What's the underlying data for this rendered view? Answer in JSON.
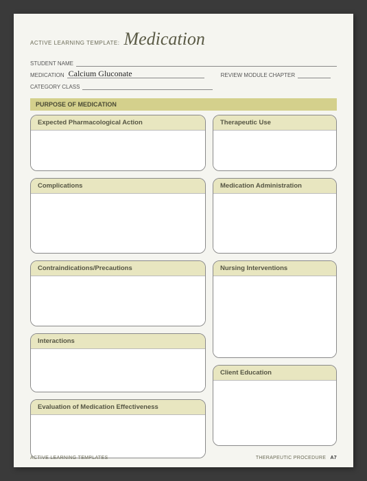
{
  "header": {
    "prefix": "ACTIVE LEARNING TEMPLATE:",
    "title": "Medication"
  },
  "meta": {
    "student_label": "STUDENT NAME",
    "student_value": "",
    "medication_label": "MEDICATION",
    "medication_value": "Calcium Gluconate",
    "review_label": "REVIEW MODULE CHAPTER",
    "review_value": "",
    "category_label": "CATEGORY CLASS",
    "category_value": ""
  },
  "section_band": "PURPOSE OF MEDICATION",
  "boxes": {
    "expected": "Expected Pharmacological Action",
    "therapeutic": "Therapeutic Use",
    "complications": "Complications",
    "med_admin": "Medication Administration",
    "contra": "Contraindications/Precautions",
    "nursing": "Nursing Interventions",
    "interactions": "Interactions",
    "client_ed": "Client Education",
    "evaluation": "Evaluation of Medication Effectiveness"
  },
  "heights": {
    "expected": 58,
    "therapeutic": 58,
    "complications": 86,
    "med_admin": 86,
    "contra": 72,
    "nursing": 118,
    "interactions": 62,
    "client_ed": 94,
    "evaluation": 62
  },
  "colors": {
    "band_bg": "#d4d08c",
    "box_head_bg": "#e8e6c0",
    "page_bg": "#f5f5f0",
    "outer_bg": "#3a3a3a",
    "border": "#888"
  },
  "footer": {
    "left": "ACTIVE LEARNING TEMPLATES",
    "right": "THERAPEUTIC PROCEDURE",
    "page": "A7"
  }
}
